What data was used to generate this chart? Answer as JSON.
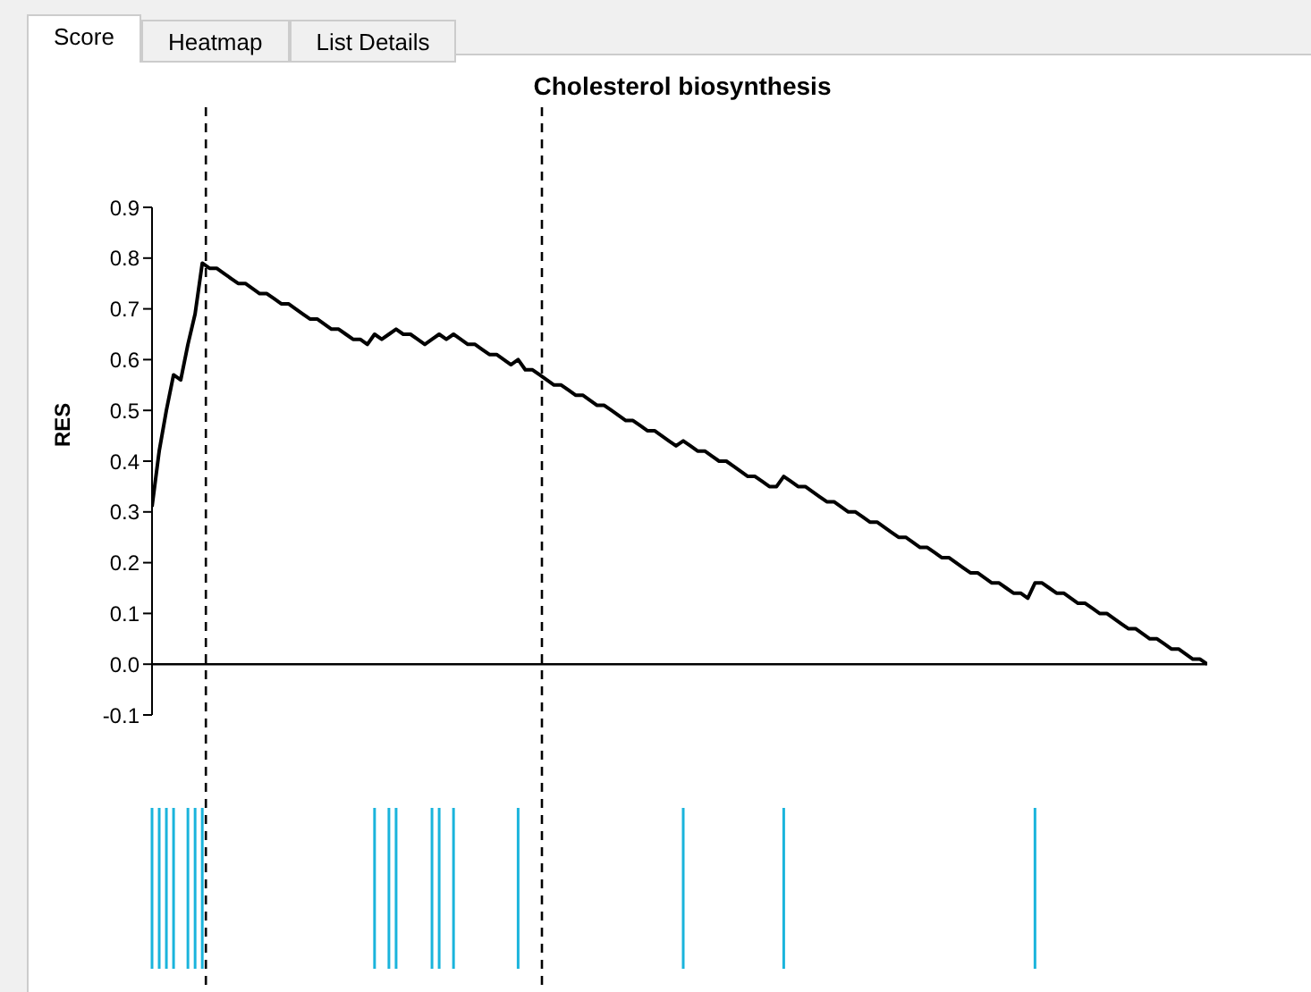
{
  "chart_data": {
    "type": "line",
    "title": "Cholesterol biosynthesis",
    "ylabel": "RES",
    "annotations": [
      "Score",
      "Heatmap",
      "List Details"
    ],
    "categories": [
      null,
      null,
      null,
      null,
      null,
      null,
      null,
      null,
      null,
      null,
      null,
      null,
      null,
      null,
      null,
      null,
      null,
      null,
      null,
      null,
      null,
      null,
      null,
      null,
      null,
      null,
      null,
      null,
      null,
      null,
      null,
      null,
      null,
      null,
      null,
      null,
      null,
      null,
      null,
      null,
      null,
      null,
      null,
      null,
      null,
      null,
      null,
      null,
      null,
      null,
      null,
      null,
      null,
      null,
      null,
      null,
      null,
      null,
      null,
      null,
      null,
      null,
      null,
      null,
      null,
      null,
      null,
      null,
      null,
      null,
      null,
      null,
      null,
      null,
      null,
      null,
      null,
      null,
      null,
      null,
      null,
      null,
      null,
      null,
      null,
      null,
      null,
      null,
      null,
      null,
      null,
      null,
      null,
      null,
      null,
      null,
      null,
      null,
      null,
      null,
      null,
      null,
      null,
      null,
      null,
      null,
      null,
      null,
      null,
      null,
      null,
      null,
      null,
      null,
      null,
      null,
      null,
      null,
      null,
      null,
      null,
      null,
      null,
      null,
      null,
      null,
      null,
      null,
      null,
      null,
      null,
      null,
      null,
      null,
      null,
      null,
      null,
      null,
      null,
      null,
      null,
      null,
      null,
      null,
      null,
      null,
      null,
      null
    ],
    "series": [
      {
        "color": "#000000",
        "values": [
          0.31,
          0.42,
          0.5,
          0.57,
          0.56,
          0.63,
          0.69,
          0.79,
          0.78,
          0.78,
          0.77,
          0.76,
          0.75,
          0.75,
          0.74,
          0.73,
          0.73,
          0.72,
          0.71,
          0.71,
          0.7,
          0.69,
          0.68,
          0.68,
          0.67,
          0.66,
          0.66,
          0.65,
          0.64,
          0.64,
          0.63,
          0.65,
          0.64,
          0.65,
          0.66,
          0.65,
          0.65,
          0.64,
          0.63,
          0.64,
          0.65,
          0.64,
          0.65,
          0.64,
          0.63,
          0.63,
          0.62,
          0.61,
          0.61,
          0.6,
          0.59,
          0.6,
          0.58,
          0.58,
          0.57,
          0.56,
          0.55,
          0.55,
          0.54,
          0.53,
          0.53,
          0.52,
          0.51,
          0.51,
          0.5,
          0.49,
          0.48,
          0.48,
          0.47,
          0.46,
          0.46,
          0.45,
          0.44,
          0.43,
          0.44,
          0.43,
          0.42,
          0.42,
          0.41,
          0.4,
          0.4,
          0.39,
          0.38,
          0.37,
          0.37,
          0.36,
          0.35,
          0.35,
          0.37,
          0.36,
          0.35,
          0.35,
          0.34,
          0.33,
          0.32,
          0.32,
          0.31,
          0.3,
          0.3,
          0.29,
          0.28,
          0.28,
          0.27,
          0.26,
          0.25,
          0.25,
          0.24,
          0.23,
          0.23,
          0.22,
          0.21,
          0.21,
          0.2,
          0.19,
          0.18,
          0.18,
          0.17,
          0.16,
          0.16,
          0.15,
          0.14,
          0.14,
          0.13,
          0.16,
          0.16,
          0.15,
          0.14,
          0.14,
          0.13,
          0.12,
          0.12,
          0.11,
          0.1,
          0.1,
          0.09,
          0.08,
          0.07,
          0.07,
          0.06,
          0.05,
          0.05,
          0.04,
          0.03,
          0.03,
          0.02,
          0.01,
          0.01,
          0
        ]
      }
    ],
    "ylim": [
      -0.1,
      0.9
    ],
    "yticks": [
      {
        "value": -0.1,
        "label": "-0.1"
      },
      {
        "value": 0,
        "label": "0.0"
      },
      {
        "value": 0.1,
        "label": "0.1"
      },
      {
        "value": 0.2,
        "label": "0.2"
      },
      {
        "value": 0.3,
        "label": "0.3"
      },
      {
        "value": 0.4,
        "label": "0.4"
      },
      {
        "value": 0.5,
        "label": "0.5"
      },
      {
        "value": 0.6,
        "label": "0.6"
      },
      {
        "value": 0.7,
        "label": "0.7"
      },
      {
        "value": 0.8,
        "label": "0.8"
      },
      {
        "value": 0.9,
        "label": "0.9"
      }
    ],
    "tick_labels": "y",
    "marker": "none",
    "line_style": "solid",
    "ref_lines": [
      {
        "axis": "y",
        "value": 0,
        "color": "#000000",
        "line_style": "solid"
      }
    ]
  }
}
